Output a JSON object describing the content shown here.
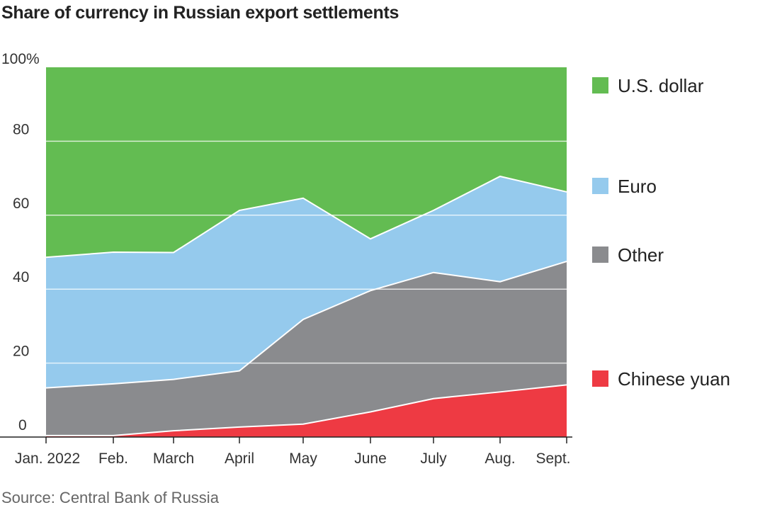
{
  "chart_data": {
    "type": "area",
    "stacked": true,
    "title": "Share of currency in Russian export settlements",
    "source": "Source: Central Bank of Russia",
    "categories": [
      "Jan. 2022",
      "Feb.",
      "March",
      "April",
      "May",
      "June",
      "July",
      "Aug.",
      "Sept."
    ],
    "ylim": [
      0,
      100
    ],
    "yticks": [
      0,
      20,
      40,
      60,
      80,
      100
    ],
    "ytick_labels": [
      "0",
      "20",
      "40",
      "60",
      "80",
      "100%"
    ],
    "grid": true,
    "legend_position": "right",
    "series": [
      {
        "name": "Chinese yuan",
        "color": "#ee3a43",
        "values": [
          0.4,
          0.4,
          1.7,
          2.7,
          3.5,
          6.8,
          10.4,
          12.2,
          14.1
        ]
      },
      {
        "name": "Other",
        "color": "#8a8b8e",
        "values": [
          12.9,
          14.0,
          13.9,
          15.2,
          28.3,
          32.8,
          34.1,
          29.8,
          33.4
        ]
      },
      {
        "name": "Euro",
        "color": "#95caed",
        "values": [
          35.3,
          35.6,
          34.3,
          43.4,
          32.8,
          14.0,
          16.8,
          28.5,
          18.8
        ]
      },
      {
        "name": "U.S. dollar",
        "color": "#63bc52",
        "values": [
          51.4,
          50.0,
          50.1,
          38.7,
          35.4,
          46.4,
          38.7,
          29.5,
          33.7
        ]
      }
    ]
  }
}
